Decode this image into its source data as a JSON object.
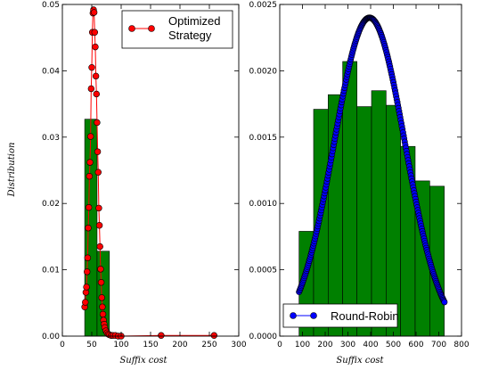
{
  "chart_data": [
    {
      "type": "bar+line",
      "xlabel": "Suffix cost",
      "ylabel": "Distribution",
      "xlim": [
        0,
        300
      ],
      "ylim": [
        0,
        0.05
      ],
      "xticks": [
        0,
        50,
        100,
        150,
        200,
        250,
        300
      ],
      "yticks": [
        0.0,
        0.01,
        0.02,
        0.03,
        0.04,
        0.05
      ],
      "ytick_labels": [
        "0.00",
        "0.01",
        "0.02",
        "0.03",
        "0.04",
        "0.05"
      ],
      "bar_color": "#008000",
      "histogram": {
        "bin_edges": [
          38,
          59,
          80
        ],
        "values": [
          0.0327,
          0.0128
        ]
      },
      "series": [
        {
          "name": "Optimized Strategy",
          "color": "#ff0000",
          "marker": "circle",
          "x": [
            38,
            39,
            40,
            41,
            42,
            43,
            44,
            45,
            46,
            47,
            48,
            49,
            50,
            51,
            52,
            53,
            54,
            55,
            56,
            57,
            58,
            59,
            60,
            61,
            62,
            63,
            64,
            65,
            66,
            67,
            68,
            69,
            70,
            71,
            72,
            74,
            76,
            78,
            80,
            83,
            86,
            90,
            95,
            100,
            168,
            258
          ],
          "y": [
            0.0044,
            0.0051,
            0.0066,
            0.0074,
            0.0097,
            0.0118,
            0.0163,
            0.0194,
            0.0241,
            0.0262,
            0.0301,
            0.0373,
            0.0405,
            0.0458,
            0.0487,
            0.0492,
            0.0488,
            0.0458,
            0.0436,
            0.0392,
            0.0365,
            0.0322,
            0.0278,
            0.0247,
            0.0193,
            0.0167,
            0.0135,
            0.0101,
            0.0081,
            0.0058,
            0.0044,
            0.0033,
            0.0024,
            0.0018,
            0.0013,
            0.0008,
            0.0005,
            0.0003,
            0.0002,
            0.0001,
            0.0001,
            0.0001,
            0.0,
            0.0,
            0.0001,
            0.0001
          ]
        }
      ],
      "legend": {
        "position": "top-right",
        "entries": [
          "Optimized",
          "Strategy"
        ]
      },
      "grid": false
    },
    {
      "type": "bar+line",
      "xlabel": "Suffix cost",
      "ylabel": "",
      "xlim": [
        0,
        800
      ],
      "ylim": [
        0,
        0.0025
      ],
      "xticks": [
        0,
        100,
        200,
        300,
        400,
        500,
        600,
        700,
        800
      ],
      "yticks": [
        0.0,
        0.0005,
        0.001,
        0.0015,
        0.002,
        0.0025
      ],
      "ytick_labels": [
        "0.0000",
        "0.0005",
        "0.0010",
        "0.0015",
        "0.0020",
        "0.0025"
      ],
      "bar_color": "#008000",
      "histogram": {
        "bin_edges": [
          85,
          149,
          213,
          277,
          340,
          404,
          468,
          532,
          596,
          660,
          724
        ],
        "values": [
          0.00079,
          0.00171,
          0.00182,
          0.00207,
          0.00173,
          0.00185,
          0.00174,
          0.00143,
          0.00117,
          0.00113
        ]
      },
      "series": [
        {
          "name": "Round-Robin",
          "color": "#0000ff",
          "marker": "circle",
          "gaussian": {
            "mean": 395,
            "sigma": 156,
            "peak": 0.0024,
            "x_start": 85,
            "x_end": 725,
            "step": 2.5
          }
        }
      ],
      "legend": {
        "position": "bottom-left",
        "entries": [
          "Round-Robin"
        ]
      },
      "grid": false
    }
  ]
}
